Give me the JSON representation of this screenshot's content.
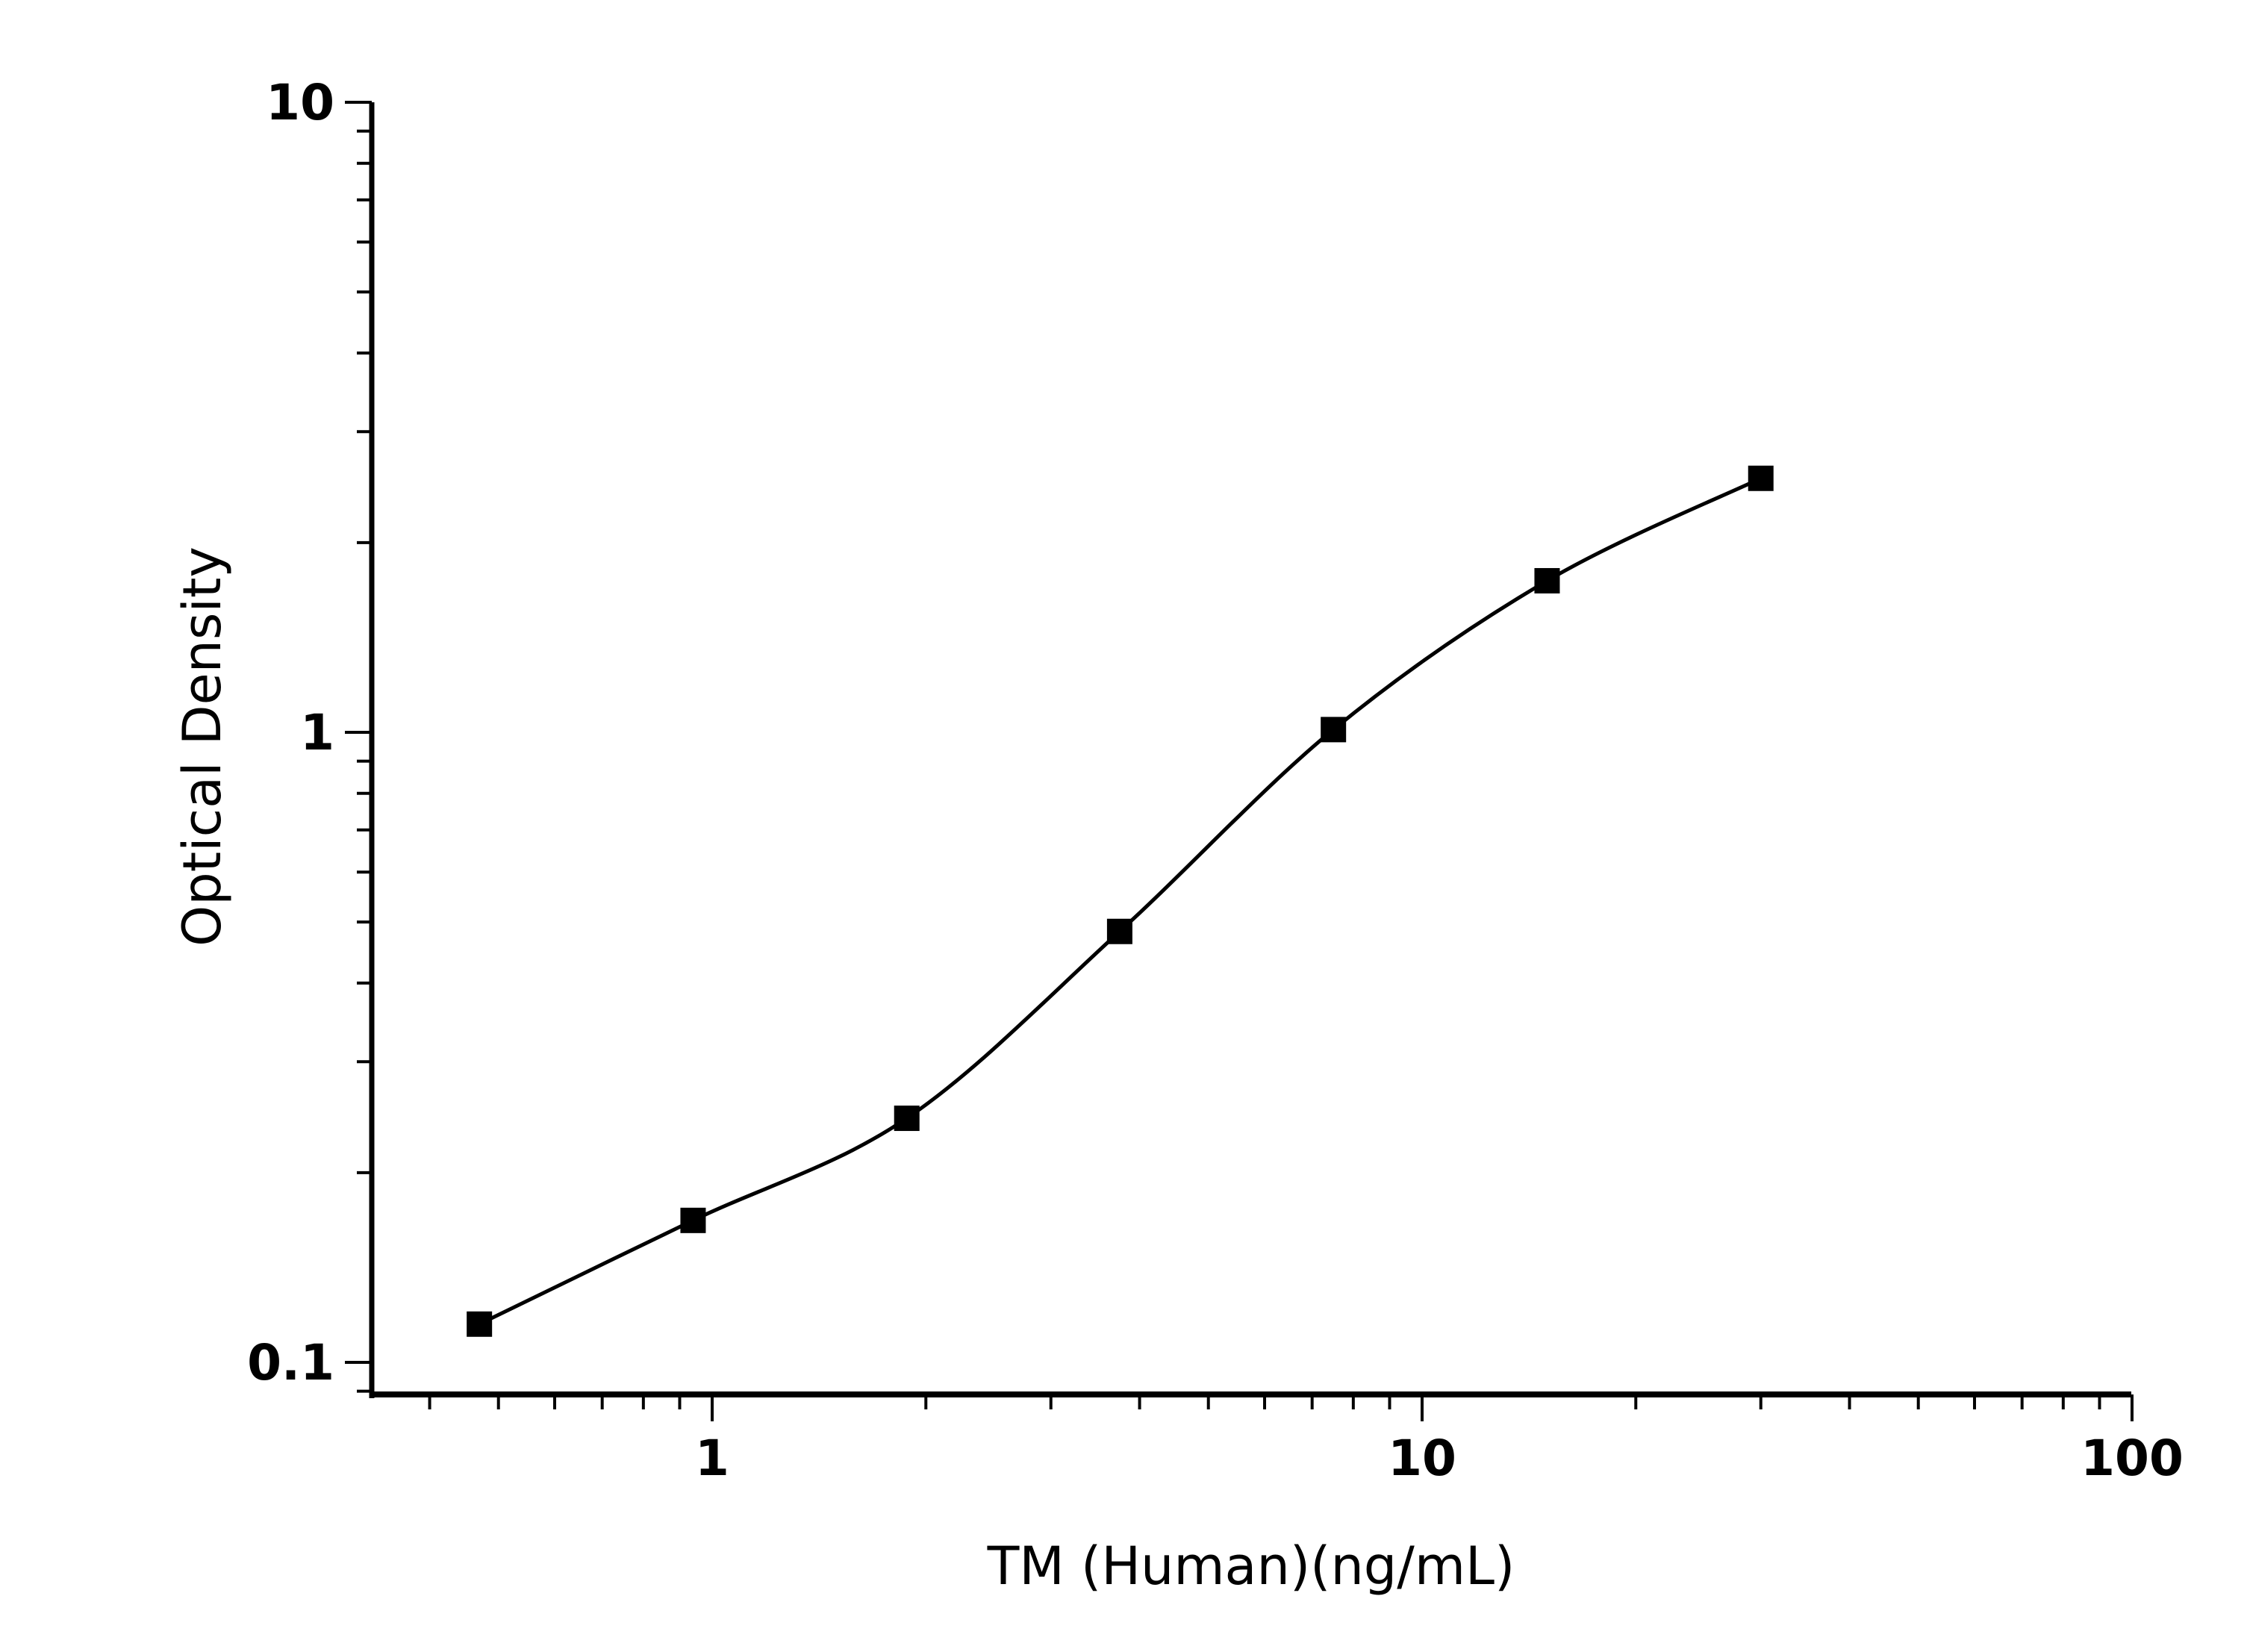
{
  "chart_data": {
    "type": "scatter",
    "title": "",
    "xlabel": "TM (Human)(ng/mL)",
    "ylabel": "Optical Density",
    "xscale": "log",
    "yscale": "log",
    "xlim": [
      0.33,
      100
    ],
    "ylim": [
      0.089,
      10
    ],
    "x_ticks": [
      1,
      10,
      100
    ],
    "x_tick_labels": [
      "1",
      "10",
      "100"
    ],
    "y_ticks": [
      0.1,
      1,
      10
    ],
    "y_tick_labels": [
      "0.1",
      "1",
      "10"
    ],
    "grid": false,
    "legend": "none",
    "marker": "square",
    "color": "#000000",
    "fit_curve": true,
    "x": [
      0.47,
      0.94,
      1.88,
      3.75,
      7.5,
      15,
      30
    ],
    "y": [
      0.115,
      0.168,
      0.244,
      0.483,
      1.01,
      1.74,
      2.53
    ]
  }
}
